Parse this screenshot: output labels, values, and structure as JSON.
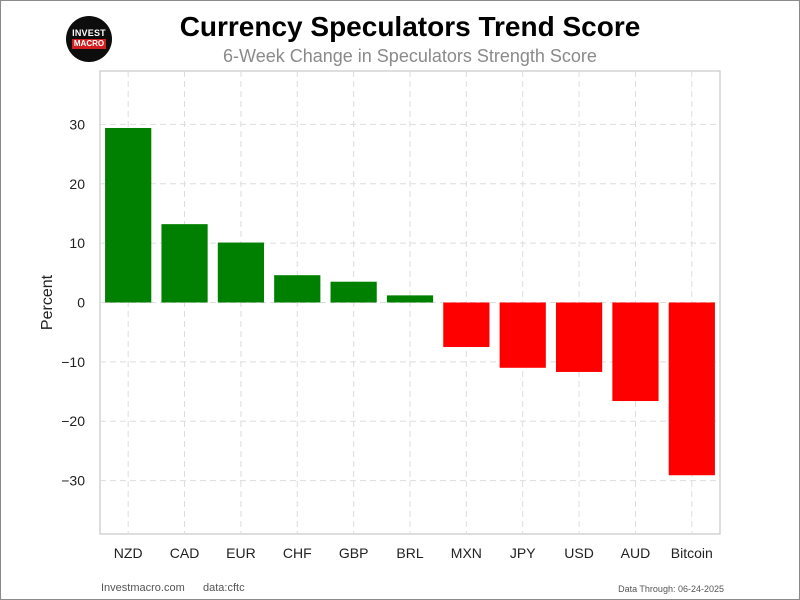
{
  "header": {
    "title": "Currency Speculators Trend Score",
    "subtitle": "6-Week Change in Speculators Strength Score"
  },
  "logo": {
    "line1": "INVEST",
    "line2": "MACRO"
  },
  "footer": {
    "site": "Investmacro.com",
    "source": "data:cftc",
    "data_through": "Data Through: 06-24-2025"
  },
  "colors": {
    "positive": "#008000",
    "negative": "#ff0000",
    "grid": "#dddddd",
    "axis_border": "#cccccc"
  },
  "chart_data": {
    "type": "bar",
    "title": "Currency Speculators Trend Score",
    "subtitle": "6-Week Change in Speculators Strength Score",
    "xlabel": "",
    "ylabel": "Percent",
    "categories": [
      "NZD",
      "CAD",
      "EUR",
      "CHF",
      "GBP",
      "BRL",
      "MXN",
      "JPY",
      "USD",
      "AUD",
      "Bitcoin"
    ],
    "values": [
      29.4,
      13.2,
      10.1,
      4.6,
      3.5,
      1.2,
      -7.5,
      -11.0,
      -11.7,
      -16.6,
      -29.1
    ],
    "ylim": [
      -39,
      39
    ],
    "yticks": [
      -30,
      -20,
      -10,
      0,
      10,
      20,
      30
    ],
    "ytick_labels": [
      "−30",
      "−20",
      "−10",
      "0",
      "10",
      "20",
      "30"
    ],
    "grid": true
  }
}
